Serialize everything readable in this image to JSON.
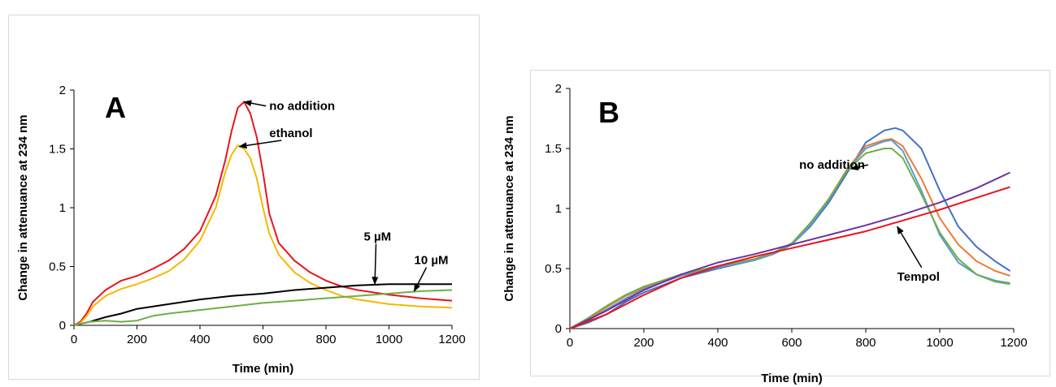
{
  "chart_data": [
    {
      "type": "line",
      "panel_label": "A",
      "xlabel": "Time (min)",
      "ylabel": "Change in attenuance at 234 nm",
      "xlim": [
        0,
        1200
      ],
      "ylim": [
        0,
        2
      ],
      "xticks": [
        "0",
        "200",
        "400",
        "600",
        "800",
        "1000",
        "1200"
      ],
      "yticks": [
        "0",
        "0.5",
        "1",
        "1.5",
        "2"
      ],
      "grid": false,
      "series": [
        {
          "color": "#e8141b",
          "x": [
            0,
            20,
            40,
            60,
            100,
            150,
            200,
            250,
            300,
            350,
            400,
            450,
            480,
            500,
            520,
            540,
            560,
            580,
            600,
            620,
            650,
            700,
            750,
            800,
            850,
            900,
            1000,
            1100,
            1200
          ],
          "y": [
            0,
            0.03,
            0.1,
            0.2,
            0.3,
            0.38,
            0.42,
            0.48,
            0.55,
            0.65,
            0.8,
            1.1,
            1.4,
            1.65,
            1.85,
            1.9,
            1.8,
            1.6,
            1.3,
            0.95,
            0.7,
            0.55,
            0.45,
            0.38,
            0.33,
            0.3,
            0.26,
            0.23,
            0.21
          ]
        },
        {
          "color": "#f5b800",
          "x": [
            0,
            20,
            40,
            60,
            100,
            150,
            200,
            250,
            300,
            350,
            400,
            450,
            480,
            500,
            520,
            540,
            560,
            580,
            600,
            620,
            650,
            700,
            750,
            800,
            850,
            900,
            1000,
            1100,
            1200
          ],
          "y": [
            0,
            0.02,
            0.08,
            0.16,
            0.25,
            0.31,
            0.35,
            0.4,
            0.46,
            0.56,
            0.72,
            1.0,
            1.3,
            1.45,
            1.53,
            1.5,
            1.42,
            1.25,
            1.0,
            0.78,
            0.6,
            0.45,
            0.36,
            0.3,
            0.25,
            0.22,
            0.18,
            0.16,
            0.15
          ]
        },
        {
          "color": "#000000",
          "x": [
            0,
            50,
            100,
            150,
            200,
            300,
            400,
            500,
            600,
            700,
            800,
            900,
            1000,
            1100,
            1200
          ],
          "y": [
            0,
            0.03,
            0.07,
            0.1,
            0.14,
            0.18,
            0.22,
            0.25,
            0.27,
            0.3,
            0.32,
            0.34,
            0.35,
            0.35,
            0.35
          ]
        },
        {
          "color": "#70ad47",
          "x": [
            0,
            50,
            100,
            150,
            200,
            250,
            300,
            400,
            500,
            600,
            700,
            800,
            900,
            1000,
            1100,
            1200
          ],
          "y": [
            0,
            0.03,
            0.04,
            0.03,
            0.04,
            0.08,
            0.1,
            0.13,
            0.16,
            0.19,
            0.21,
            0.23,
            0.25,
            0.27,
            0.29,
            0.3
          ]
        }
      ],
      "annotations": [
        {
          "text": "no addition",
          "x": 620,
          "y": 1.83,
          "arrow_to": [
            540,
            1.9
          ]
        },
        {
          "text": "ethanol",
          "x": 620,
          "y": 1.6,
          "arrow_to": [
            525,
            1.52
          ]
        },
        {
          "text": "5 µM",
          "x": 920,
          "y": 0.72,
          "arrow_to": [
            955,
            0.35
          ]
        },
        {
          "text": "10 µM",
          "x": 1080,
          "y": 0.52,
          "arrow_to": [
            1080,
            0.29
          ]
        }
      ]
    },
    {
      "type": "line",
      "panel_label": "B",
      "xlabel": "Time (min)",
      "ylabel": "Change in attenuance at 234 nm",
      "xlim": [
        0,
        1200
      ],
      "ylim": [
        0,
        2
      ],
      "xticks": [
        "0",
        "200",
        "400",
        "600",
        "800",
        "1000",
        "1200"
      ],
      "yticks": [
        "0",
        "0.5",
        "1",
        "1.5",
        "2"
      ],
      "grid": false,
      "series": [
        {
          "color": "#4472c4",
          "x": [
            0,
            50,
            100,
            150,
            200,
            300,
            400,
            500,
            550,
            600,
            650,
            700,
            750,
            800,
            850,
            880,
            900,
            950,
            1000,
            1050,
            1100,
            1150,
            1190
          ],
          "y": [
            0,
            0.05,
            0.12,
            0.22,
            0.3,
            0.42,
            0.5,
            0.57,
            0.62,
            0.7,
            0.85,
            1.05,
            1.3,
            1.55,
            1.65,
            1.67,
            1.65,
            1.5,
            1.15,
            0.85,
            0.68,
            0.56,
            0.48
          ]
        },
        {
          "color": "#ed7d31",
          "x": [
            0,
            50,
            100,
            150,
            200,
            300,
            400,
            500,
            550,
            600,
            650,
            700,
            750,
            800,
            850,
            870,
            900,
            950,
            1000,
            1050,
            1100,
            1150,
            1190
          ],
          "y": [
            0,
            0.08,
            0.18,
            0.27,
            0.34,
            0.45,
            0.52,
            0.58,
            0.63,
            0.71,
            0.87,
            1.08,
            1.33,
            1.52,
            1.57,
            1.58,
            1.52,
            1.25,
            0.92,
            0.7,
            0.56,
            0.48,
            0.44
          ]
        },
        {
          "color": "#5b9bd5",
          "x": [
            0,
            50,
            100,
            150,
            200,
            300,
            400,
            500,
            550,
            600,
            650,
            700,
            750,
            800,
            850,
            870,
            900,
            950,
            1000,
            1050,
            1100,
            1150,
            1190
          ],
          "y": [
            0,
            0.07,
            0.16,
            0.25,
            0.33,
            0.44,
            0.51,
            0.57,
            0.62,
            0.7,
            0.86,
            1.07,
            1.32,
            1.5,
            1.56,
            1.57,
            1.48,
            1.15,
            0.78,
            0.55,
            0.45,
            0.4,
            0.38
          ]
        },
        {
          "color": "#70ad47",
          "x": [
            0,
            50,
            100,
            150,
            200,
            300,
            400,
            500,
            550,
            600,
            650,
            700,
            750,
            800,
            850,
            870,
            900,
            950,
            1000,
            1050,
            1100,
            1150,
            1190
          ],
          "y": [
            0,
            0.09,
            0.19,
            0.28,
            0.35,
            0.45,
            0.52,
            0.58,
            0.63,
            0.71,
            0.88,
            1.08,
            1.32,
            1.46,
            1.5,
            1.5,
            1.42,
            1.12,
            0.8,
            0.58,
            0.45,
            0.39,
            0.37
          ]
        },
        {
          "color": "#7030a0",
          "x": [
            0,
            100,
            200,
            300,
            400,
            500,
            600,
            700,
            800,
            900,
            1000,
            1100,
            1190
          ],
          "y": [
            0,
            0.15,
            0.32,
            0.45,
            0.55,
            0.62,
            0.7,
            0.78,
            0.86,
            0.95,
            1.05,
            1.17,
            1.3
          ]
        },
        {
          "color": "#e8141b",
          "x": [
            0,
            100,
            200,
            300,
            400,
            500,
            600,
            700,
            800,
            900,
            1000,
            1100,
            1190
          ],
          "y": [
            0,
            0.12,
            0.28,
            0.42,
            0.52,
            0.6,
            0.67,
            0.74,
            0.81,
            0.9,
            0.99,
            1.09,
            1.18
          ]
        }
      ],
      "annotations": [
        {
          "text": "no addition",
          "x": 620,
          "y": 1.33,
          "arrow_to": [
            760,
            1.33
          ]
        },
        {
          "text": "Tempol",
          "x": 885,
          "y": 0.4,
          "arrow_to": [
            885,
            0.85
          ]
        }
      ]
    }
  ]
}
